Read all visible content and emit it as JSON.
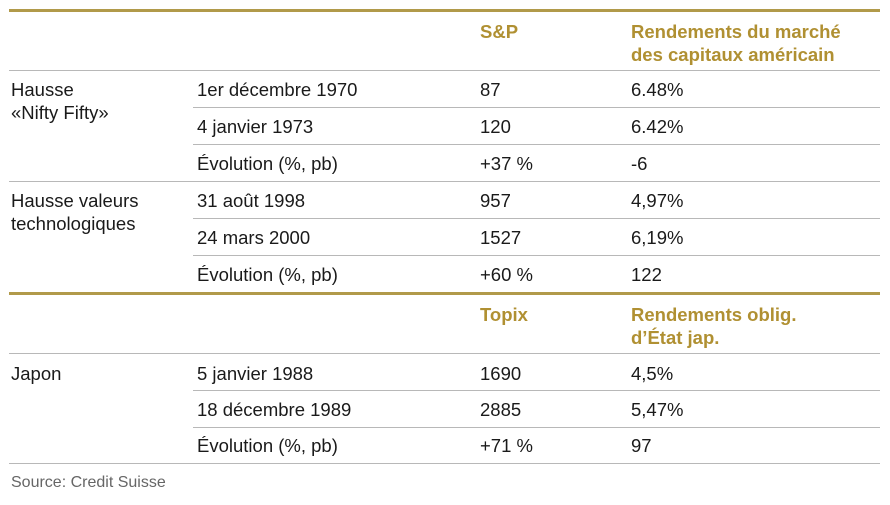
{
  "section1": {
    "header": {
      "index_label": "S&P",
      "yield_line1": "Rendements du marché",
      "yield_line2": "des capitaux américain"
    },
    "groups": [
      {
        "name_line1": "Hausse",
        "name_line2": "«Nifty Fifty»",
        "rows": [
          {
            "date": "1er décembre 1970",
            "index": "87",
            "yield": "6.48%"
          },
          {
            "date": "4 janvier 1973",
            "index": "120",
            "yield": "6.42%"
          },
          {
            "date": "Évolution (%, pb)",
            "index": "+37 %",
            "yield": "-6"
          }
        ]
      },
      {
        "name_line1": "Hausse valeurs",
        "name_line2": "technologiques",
        "rows": [
          {
            "date": "31 août 1998",
            "index": "957",
            "yield": "4,97%"
          },
          {
            "date": "24 mars 2000",
            "index": "1527",
            "yield": "6,19%"
          },
          {
            "date": "Évolution (%, pb)",
            "index": "+60 %",
            "yield": "122"
          }
        ]
      }
    ]
  },
  "section2": {
    "header": {
      "index_label": "Topix",
      "yield_line1": "Rendements oblig.",
      "yield_line2": "d’État jap."
    },
    "groups": [
      {
        "name_line1": "Japon",
        "rows": [
          {
            "date": "5 janvier 1988",
            "index": "1690",
            "yield": "4,5%"
          },
          {
            "date": "18 décembre 1989",
            "index": "2885",
            "yield": "5,47%"
          },
          {
            "date": "Évolution (%, pb)",
            "index": "+71 %",
            "yield": "97"
          }
        ]
      }
    ]
  },
  "source": "Source: Credit Suisse",
  "colors": {
    "accent": "#b09032",
    "rule": "#b19a4a",
    "divider": "#b8b8b8"
  }
}
